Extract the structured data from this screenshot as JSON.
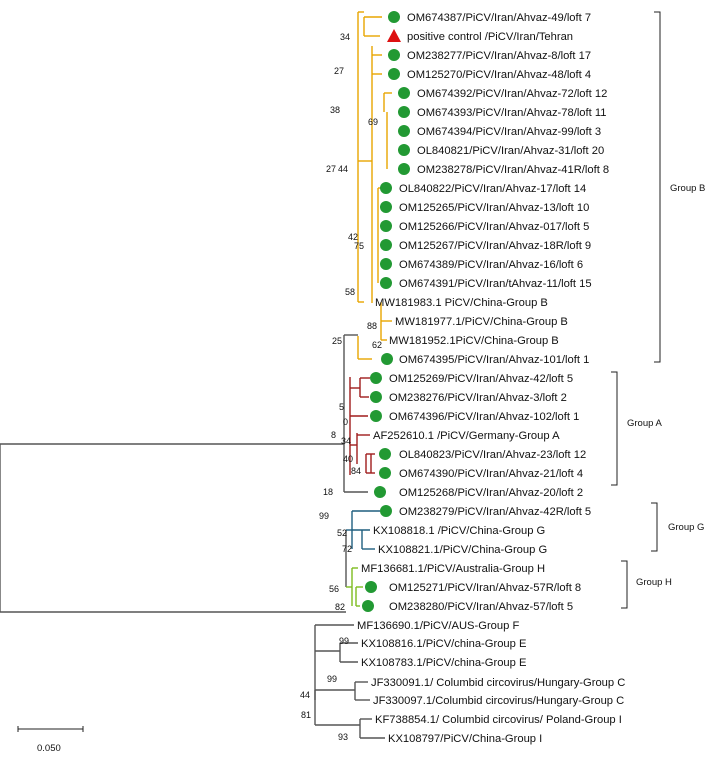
{
  "colors": {
    "group_b": "#e8a500",
    "group_a": "#a01c1c",
    "group_g": "#1f5f7f",
    "group_h": "#7dbb1e",
    "outgroup": "#555555",
    "study_marker": "#229933",
    "control_marker": "#dd1111"
  },
  "markers": {
    "study_sample": "green-circle-icon",
    "positive_control": "red-triangle-icon"
  },
  "taxa": [
    {
      "label": "OM674387/PiCV/Iran/Ahvaz-49/loft 7",
      "marker": "circle"
    },
    {
      "label": "positive control /PiCV/Iran/Tehran",
      "marker": "triangle"
    },
    {
      "label": "OM238277/PiCV/Iran/Ahvaz-8/loft 17",
      "marker": "circle"
    },
    {
      "label": "OM125270/PiCV/Iran/Ahvaz-48/loft 4",
      "marker": "circle"
    },
    {
      "label": "OM674392/PiCV/Iran/Ahvaz-72/loft 12",
      "marker": "circle"
    },
    {
      "label": "OM674393/PiCV/Iran/Ahvaz-78/loft 11",
      "marker": "circle"
    },
    {
      "label": "OM674394/PiCV/Iran/Ahvaz-99/loft 3",
      "marker": "circle"
    },
    {
      "label": "OL840821/PiCV/Iran/Ahvaz-31/loft 20",
      "marker": "circle"
    },
    {
      "label": "OM238278/PiCV/Iran/Ahvaz-41R/loft 8",
      "marker": "circle"
    },
    {
      "label": "OL840822/PiCV/Iran/Ahvaz-17/loft 14",
      "marker": "circle"
    },
    {
      "label": "OM125265/PiCV/Iran/Ahvaz-13/loft 10",
      "marker": "circle"
    },
    {
      "label": "OM125266/PiCV/Iran/Ahvaz-017/loft 5",
      "marker": "circle"
    },
    {
      "label": "OM125267/PiCV/Iran/Ahvaz-18R/loft 9",
      "marker": "circle"
    },
    {
      "label": "OM674389/PiCV/Iran/Ahvaz-16/loft 6",
      "marker": "circle"
    },
    {
      "label": "OM674391/PiCV/Iran/tAhvaz-11/loft 15",
      "marker": "circle"
    },
    {
      "label": "MW181983.1 PiCV/China-Group B",
      "marker": "none"
    },
    {
      "label": "MW181977.1/PiCV/China-Group B",
      "marker": "none"
    },
    {
      "label": "MW181952.1PiCV/China-Group B",
      "marker": "none"
    },
    {
      "label": "OM674395/PiCV/Iran/Ahvaz-101/loft 1",
      "marker": "circle"
    },
    {
      "label": "OM125269/PiCV/Iran/Ahvaz-42/loft 5",
      "marker": "circle"
    },
    {
      "label": "OM238276/PiCV/Iran/Ahvaz-3/loft 2",
      "marker": "circle"
    },
    {
      "label": "OM674396/PiCV/Iran/Ahvaz-102/loft 1",
      "marker": "circle"
    },
    {
      "label": "AF252610.1 /PiCV/Germany-Group A",
      "marker": "none"
    },
    {
      "label": "OL840823/PiCV/Iran/Ahvaz-23/loft 12",
      "marker": "circle"
    },
    {
      "label": "OM674390/PiCV/Iran/Ahvaz-21/loft 4",
      "marker": "circle"
    },
    {
      "label": "OM125268/PiCV/Iran/Ahvaz-20/loft 2",
      "marker": "circle"
    },
    {
      "label": "OM238279/PiCV/Iran/Ahvaz-42R/loft 5",
      "marker": "circle"
    },
    {
      "label": "KX108818.1 /PiCV/China-Group G",
      "marker": "none"
    },
    {
      "label": "KX108821.1/PiCV/China-Group G",
      "marker": "none"
    },
    {
      "label": "MF136681.1/PiCV/Australia-Group H",
      "marker": "none"
    },
    {
      "label": "OM125271/PiCV/Iran/Ahvaz-57R/loft 8",
      "marker": "circle"
    },
    {
      "label": "OM238280/PiCV/Iran/Ahvaz-57/loft 5",
      "marker": "circle"
    },
    {
      "label": "MF136690.1/PiCV/AUS-Group F",
      "marker": "none"
    },
    {
      "label": "KX108816.1/PiCV/china-Group E",
      "marker": "none"
    },
    {
      "label": "KX108783.1/PiCV/china-Group E",
      "marker": "none"
    },
    {
      "label": "JF330091.1/ Columbid circovirus/Hungary-Group C",
      "marker": "none"
    },
    {
      "label": "JF330097.1/Columbid circovirus/Hungary-Group C",
      "marker": "none"
    },
    {
      "label": "KF738854.1/ Columbid circovirus/ Poland-Group I",
      "marker": "none"
    },
    {
      "label": "KX108797/PiCV/China-Group I",
      "marker": "none"
    }
  ],
  "bootstrap_values": [
    "34",
    "27",
    "38",
    "69",
    "27",
    "44",
    "42",
    "75",
    "58",
    "88",
    "62",
    "25",
    "5",
    "0",
    "8",
    "34",
    "40",
    "84",
    "18",
    "99",
    "52",
    "72",
    "56",
    "82",
    "99",
    "44",
    "99",
    "81",
    "93"
  ],
  "groups": [
    {
      "label": "Group B"
    },
    {
      "label": "Group A"
    },
    {
      "label": "Group G"
    },
    {
      "label": "Group H"
    }
  ],
  "scale_bar": {
    "value": 0.05,
    "label": "0.050"
  }
}
